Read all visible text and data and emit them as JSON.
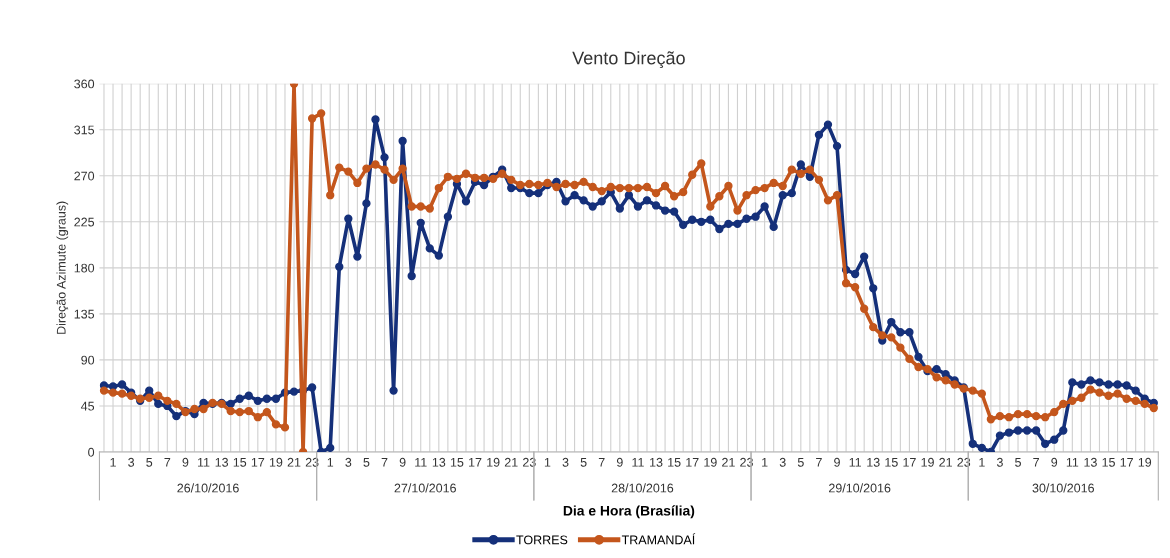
{
  "chart_data": {
    "type": "line",
    "title": "Vento Direção",
    "xlabel": "Dia e Hora (Brasília)",
    "ylabel": "Direção Azimute (graus)",
    "categories": [
      null,
      "1",
      null,
      "3",
      null,
      "5",
      null,
      "7",
      null,
      "9",
      null,
      "11",
      null,
      "13",
      null,
      "15",
      null,
      "17",
      null,
      "19",
      null,
      "21",
      null,
      "23",
      null,
      "1",
      null,
      "3",
      null,
      "5",
      null,
      "7",
      null,
      "9",
      null,
      "11",
      null,
      "13",
      null,
      "15",
      null,
      "17",
      null,
      "19",
      null,
      "21",
      null,
      "23",
      null,
      "1",
      null,
      "3",
      null,
      "5",
      null,
      "7",
      null,
      "9",
      null,
      "11",
      null,
      "13",
      null,
      "15",
      null,
      "17",
      null,
      "19",
      null,
      "21",
      null,
      "23",
      null,
      "1",
      null,
      "3",
      null,
      "5",
      null,
      "7",
      null,
      "9",
      null,
      "11",
      null,
      "13",
      null,
      "15",
      null,
      "17",
      null,
      "19",
      null,
      "21",
      null,
      "23",
      null,
      "1",
      null,
      "3",
      null,
      "5",
      null,
      "7",
      null,
      "9",
      null,
      "11",
      null,
      "13",
      null,
      "15",
      null,
      "17",
      null,
      "19",
      null
    ],
    "series": [
      {
        "name": "TORRES",
        "color": "#15307a",
        "values": [
          65,
          64,
          66,
          58,
          50,
          60,
          47,
          45,
          35,
          40,
          37,
          48,
          47,
          48,
          47,
          52,
          55,
          50,
          52,
          52,
          58,
          59,
          60,
          63,
          0,
          4,
          181,
          228,
          191,
          243,
          325,
          288,
          60,
          304,
          172,
          224,
          199,
          192,
          230,
          262,
          245,
          264,
          261,
          269,
          276,
          258,
          258,
          253,
          253,
          261,
          264,
          245,
          251,
          246,
          240,
          245,
          254,
          238,
          251,
          240,
          246,
          241,
          236,
          235,
          222,
          227,
          225,
          227,
          218,
          223,
          223,
          228,
          230,
          240,
          220,
          251,
          253,
          281,
          269,
          310,
          320,
          299,
          178,
          174,
          191,
          160,
          109,
          127,
          117,
          117,
          93,
          79,
          81,
          76,
          70,
          63,
          8,
          4,
          0,
          16,
          19,
          21,
          21,
          21,
          8,
          12,
          21,
          68,
          66,
          70,
          68,
          66,
          66,
          65,
          60,
          52,
          48
        ]
      },
      {
        "name": "TRAMANDAÍ",
        "color": "#c4561c",
        "values": [
          60,
          58,
          57,
          55,
          52,
          53,
          55,
          50,
          47,
          39,
          42,
          42,
          48,
          47,
          40,
          39,
          40,
          34,
          39,
          27,
          24,
          360,
          0,
          326,
          331,
          251,
          278,
          274,
          263,
          277,
          281,
          276,
          266,
          277,
          240,
          240,
          238,
          258,
          269,
          267,
          272,
          268,
          268,
          267,
          272,
          266,
          261,
          262,
          261,
          263,
          259,
          262,
          261,
          264,
          259,
          255,
          259,
          258,
          258,
          258,
          259,
          253,
          260,
          250,
          254,
          271,
          282,
          240,
          250,
          260,
          236,
          251,
          256,
          258,
          263,
          260,
          276,
          272,
          276,
          266,
          246,
          251,
          165,
          161,
          140,
          122,
          114,
          112,
          102,
          91,
          83,
          81,
          73,
          70,
          66,
          62,
          60,
          57,
          32,
          35,
          34,
          37,
          37,
          35,
          34,
          39,
          47,
          50,
          53,
          61,
          58,
          55,
          57,
          52,
          50,
          47,
          43
        ]
      }
    ],
    "annotations": [
      "26/10/2016",
      "27/10/2016",
      "28/10/2016",
      "29/10/2016",
      "30/10/2016"
    ],
    "ylim": [
      0,
      360
    ],
    "yticks": [
      0,
      45,
      90,
      135,
      180,
      225,
      270,
      315,
      360
    ],
    "grid": true,
    "legend": "bottom",
    "marker": "circle",
    "line_style": "solid"
  }
}
